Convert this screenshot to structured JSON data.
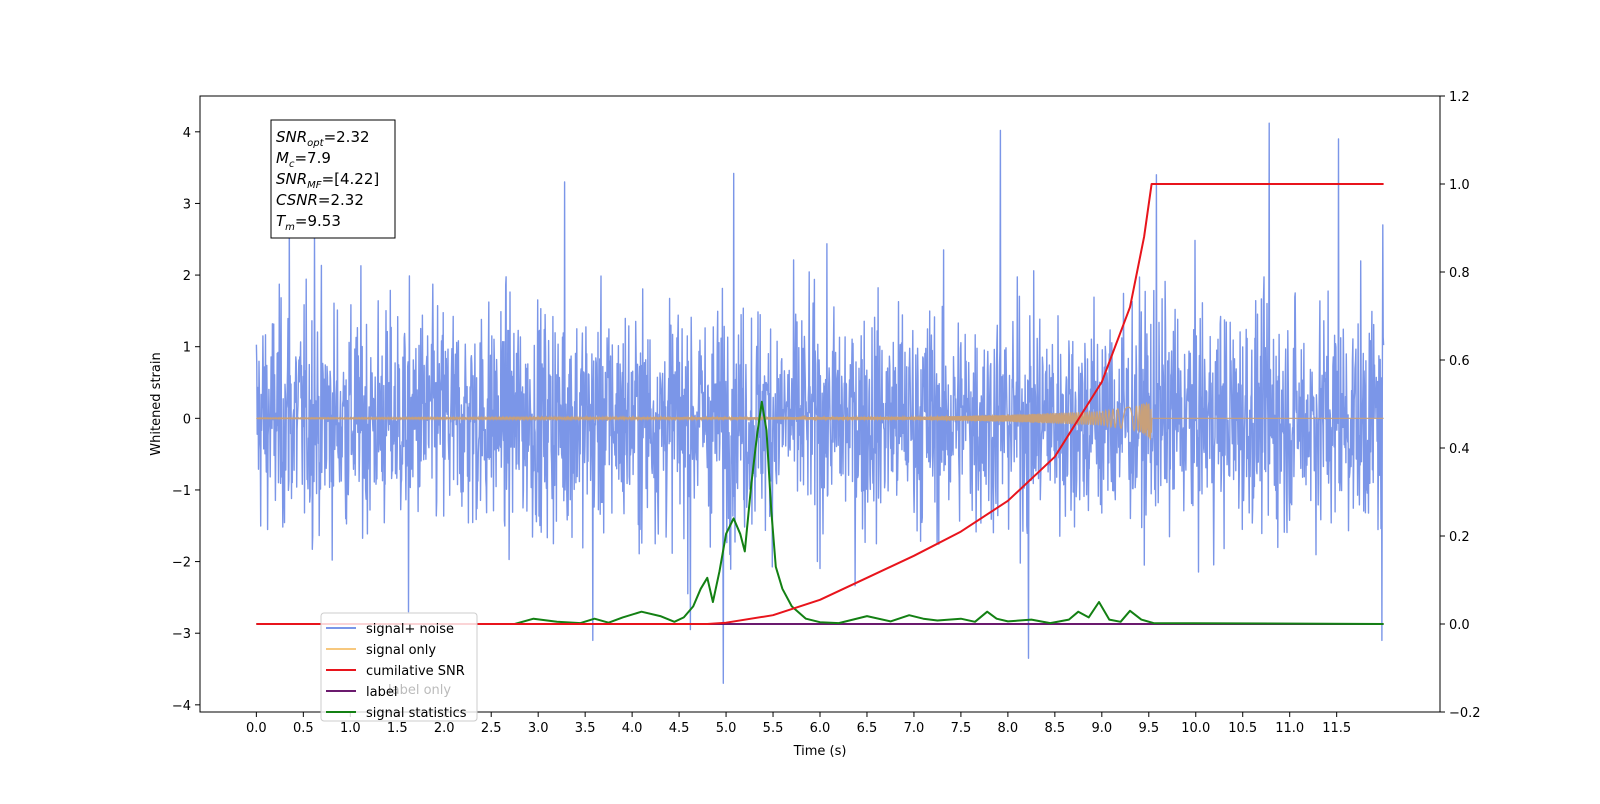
{
  "chart_data": {
    "type": "line",
    "xlabel": "Time (s)",
    "ylabel": "Whitened strain",
    "xlim": [
      -0.6,
      12.6
    ],
    "ylim": [
      -4.1,
      4.5
    ],
    "ylim_right": [
      -0.2,
      1.2
    ],
    "x_ticks": [
      0.0,
      0.5,
      1.0,
      1.5,
      2.0,
      2.5,
      3.0,
      3.5,
      4.0,
      4.5,
      5.0,
      5.5,
      6.0,
      6.5,
      7.0,
      7.5,
      8.0,
      8.5,
      9.0,
      9.5,
      10.0,
      10.5,
      11.0,
      11.5
    ],
    "x_tick_labels": [
      "0.0",
      "0.5",
      "1.0",
      "1.5",
      "2.0",
      "2.5",
      "3.0",
      "3.5",
      "4.0",
      "4.5",
      "5.0",
      "5.5",
      "6.0",
      "6.5",
      "7.0",
      "7.5",
      "8.0",
      "8.5",
      "9.0",
      "9.5",
      "10.0",
      "10.5",
      "11.0",
      "11.5"
    ],
    "y_ticks": [
      -4,
      -3,
      -2,
      -1,
      0,
      1,
      2,
      3,
      4
    ],
    "y_tick_labels": [
      "−4",
      "−3",
      "−2",
      "−1",
      "0",
      "1",
      "2",
      "3",
      "4"
    ],
    "y_ticks_right": [
      -0.2,
      0.0,
      0.2,
      0.4,
      0.6,
      0.8,
      1.0,
      1.2
    ],
    "y_tick_labels_right": [
      "−0.2",
      "0.0",
      "0.2",
      "0.4",
      "0.6",
      "0.8",
      "1.0",
      "1.2"
    ],
    "grid": false,
    "legend_position": "lower-left",
    "annotation": {
      "lines": [
        {
          "sym": "SNR",
          "sub": "opt",
          "value": "=2.32"
        },
        {
          "sym": "M",
          "sub": "c",
          "value": "=7.9"
        },
        {
          "sym": "SNR",
          "sub": "MF",
          "value": "=[4.22]"
        },
        {
          "sym": "CSNR",
          "sub": "",
          "value": "=2.32"
        },
        {
          "sym": "T",
          "sub": "m",
          "value": "=9.53"
        }
      ]
    },
    "series": [
      {
        "name": "signal+ noise",
        "color": "#7b96e8",
        "axis": "left",
        "x_range": [
          0.0,
          12.0
        ],
        "envelope_abs": 2.6,
        "peaks": [
          {
            "x": 0.35,
            "y": 2.8
          },
          {
            "x": 0.62,
            "y": 2.6
          },
          {
            "x": 1.62,
            "y": -2.7
          },
          {
            "x": 3.28,
            "y": 3.3
          },
          {
            "x": 3.58,
            "y": -3.1
          },
          {
            "x": 4.62,
            "y": -2.95
          },
          {
            "x": 4.97,
            "y": -3.7
          },
          {
            "x": 5.08,
            "y": 3.42
          },
          {
            "x": 7.92,
            "y": 4.02
          },
          {
            "x": 8.22,
            "y": -3.35
          },
          {
            "x": 9.58,
            "y": 3.4
          },
          {
            "x": 10.78,
            "y": 4.12
          },
          {
            "x": 11.52,
            "y": 3.9
          },
          {
            "x": 11.98,
            "y": -3.1
          },
          {
            "x": 11.99,
            "y": 2.7
          }
        ]
      },
      {
        "name": "signal only",
        "color": "#c8a07a",
        "axis": "left",
        "chirp_end": 9.53,
        "chirp_amplitude": [
          [
            0.0,
            0.005
          ],
          [
            7.0,
            0.02
          ],
          [
            8.0,
            0.05
          ],
          [
            9.0,
            0.1
          ],
          [
            9.4,
            0.18
          ],
          [
            9.53,
            0.3
          ]
        ]
      },
      {
        "name": "cumilative SNR",
        "color": "#e8141c",
        "axis": "right",
        "points": [
          [
            0.0,
            0.0
          ],
          [
            4.8,
            0.0
          ],
          [
            5.0,
            0.003
          ],
          [
            5.5,
            0.02
          ],
          [
            6.0,
            0.055
          ],
          [
            6.5,
            0.105
          ],
          [
            7.0,
            0.155
          ],
          [
            7.5,
            0.21
          ],
          [
            8.0,
            0.28
          ],
          [
            8.5,
            0.38
          ],
          [
            9.0,
            0.55
          ],
          [
            9.3,
            0.72
          ],
          [
            9.45,
            0.88
          ],
          [
            9.53,
            1.0
          ],
          [
            12.0,
            1.0
          ]
        ]
      },
      {
        "name": "label",
        "color": "#6b1a6e",
        "axis": "right",
        "points": [
          [
            0.0,
            0.0
          ],
          [
            12.0,
            0.0
          ]
        ]
      },
      {
        "name": "signal statistics",
        "color": "#138013",
        "axis": "right",
        "points": [
          [
            0.0,
            0.0
          ],
          [
            2.75,
            0.0
          ],
          [
            2.95,
            0.012
          ],
          [
            3.2,
            0.005
          ],
          [
            3.45,
            0.002
          ],
          [
            3.6,
            0.012
          ],
          [
            3.75,
            0.003
          ],
          [
            3.9,
            0.015
          ],
          [
            4.1,
            0.028
          ],
          [
            4.3,
            0.018
          ],
          [
            4.45,
            0.005
          ],
          [
            4.55,
            0.015
          ],
          [
            4.65,
            0.04
          ],
          [
            4.73,
            0.08
          ],
          [
            4.8,
            0.105
          ],
          [
            4.86,
            0.05
          ],
          [
            4.93,
            0.12
          ],
          [
            5.0,
            0.205
          ],
          [
            5.08,
            0.24
          ],
          [
            5.15,
            0.205
          ],
          [
            5.2,
            0.165
          ],
          [
            5.27,
            0.32
          ],
          [
            5.33,
            0.43
          ],
          [
            5.38,
            0.505
          ],
          [
            5.43,
            0.44
          ],
          [
            5.48,
            0.26
          ],
          [
            5.53,
            0.13
          ],
          [
            5.6,
            0.08
          ],
          [
            5.7,
            0.04
          ],
          [
            5.85,
            0.012
          ],
          [
            6.0,
            0.004
          ],
          [
            6.2,
            0.002
          ],
          [
            6.5,
            0.018
          ],
          [
            6.75,
            0.006
          ],
          [
            6.95,
            0.02
          ],
          [
            7.1,
            0.012
          ],
          [
            7.25,
            0.008
          ],
          [
            7.5,
            0.012
          ],
          [
            7.65,
            0.005
          ],
          [
            7.78,
            0.028
          ],
          [
            7.88,
            0.012
          ],
          [
            8.0,
            0.006
          ],
          [
            8.25,
            0.01
          ],
          [
            8.45,
            0.002
          ],
          [
            8.65,
            0.01
          ],
          [
            8.75,
            0.028
          ],
          [
            8.86,
            0.015
          ],
          [
            8.97,
            0.05
          ],
          [
            9.08,
            0.01
          ],
          [
            9.2,
            0.005
          ],
          [
            9.3,
            0.03
          ],
          [
            9.42,
            0.01
          ],
          [
            9.55,
            0.002
          ],
          [
            12.0,
            0.0
          ]
        ]
      }
    ],
    "legend_entries": [
      {
        "label": "signal+ noise",
        "color": "#7b96e8"
      },
      {
        "label": "signal only",
        "color": "#f7c87e"
      },
      {
        "label": "cumilative SNR",
        "color": "#e8141c"
      },
      {
        "label": "label",
        "color": "#6b1a6e"
      },
      {
        "label": "signal statistics",
        "color": "#138013"
      }
    ],
    "overlapped_text": "label only"
  }
}
